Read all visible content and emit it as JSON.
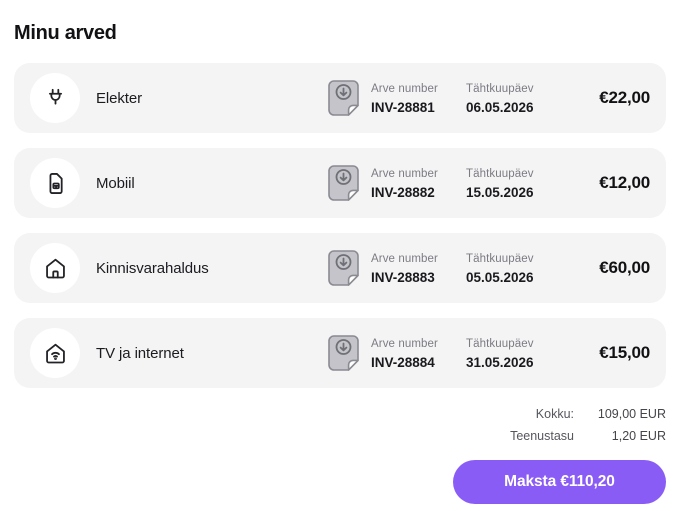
{
  "page": {
    "title": "Minu arved"
  },
  "invoices": {
    "labels": {
      "invoice_number": "Arve number",
      "due_date": "Tähtkuupäev"
    },
    "items": [
      {
        "name": "Elekter",
        "icon": "plug-icon",
        "number": "INV-28881",
        "due": "06.05.2026",
        "amount": "€22,00"
      },
      {
        "name": "Mobiil",
        "icon": "sim-card-icon",
        "number": "INV-28882",
        "due": "15.05.2026",
        "amount": "€12,00"
      },
      {
        "name": "Kinnisvarahaldus",
        "icon": "home-icon",
        "number": "INV-28883",
        "due": "05.05.2026",
        "amount": "€60,00"
      },
      {
        "name": "TV ja internet",
        "icon": "home-wifi-icon",
        "number": "INV-28884",
        "due": "31.05.2026",
        "amount": "€15,00"
      }
    ]
  },
  "summary": {
    "total_label": "Kokku:",
    "total_value": "109,00 EUR",
    "fee_label": "Teenustasu",
    "fee_value": "1,20 EUR"
  },
  "pay_button": {
    "label": "Maksta €110,20"
  },
  "colors": {
    "accent": "#8a5cf6",
    "card_bg": "#f4f4f5",
    "muted_text": "#7b7b83",
    "dark_text": "#1a1a1e"
  }
}
